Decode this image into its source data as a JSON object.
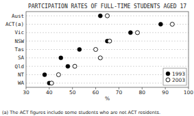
{
  "chart_data": {
    "type": "dot",
    "orientation": "horizontal",
    "title": "PARTCIPATION RATES OF FULL-TIME STUDENTS AGED 17",
    "x_label": "%",
    "annotation": "(a) The ACT figures include some students who are not ACT residents.",
    "categories": [
      "Aust",
      "ACT(a)",
      "Vic",
      "NSW",
      "Tas",
      "SA",
      "Qld",
      "NT",
      "WA"
    ],
    "series": [
      {
        "name": "1993",
        "color": "#000000",
        "marker": "filled",
        "values": [
          62,
          88,
          75,
          65,
          53,
          45,
          48,
          38,
          40
        ]
      },
      {
        "name": "2003",
        "color": "#000000",
        "marker": "open",
        "values": [
          65,
          93,
          78,
          66,
          60,
          62,
          51,
          44,
          41
        ]
      }
    ],
    "xlim": [
      30,
      100
    ],
    "xticks": [
      30,
      40,
      50,
      60,
      70,
      80,
      90,
      100
    ],
    "grid": true,
    "legend": "lower right"
  }
}
